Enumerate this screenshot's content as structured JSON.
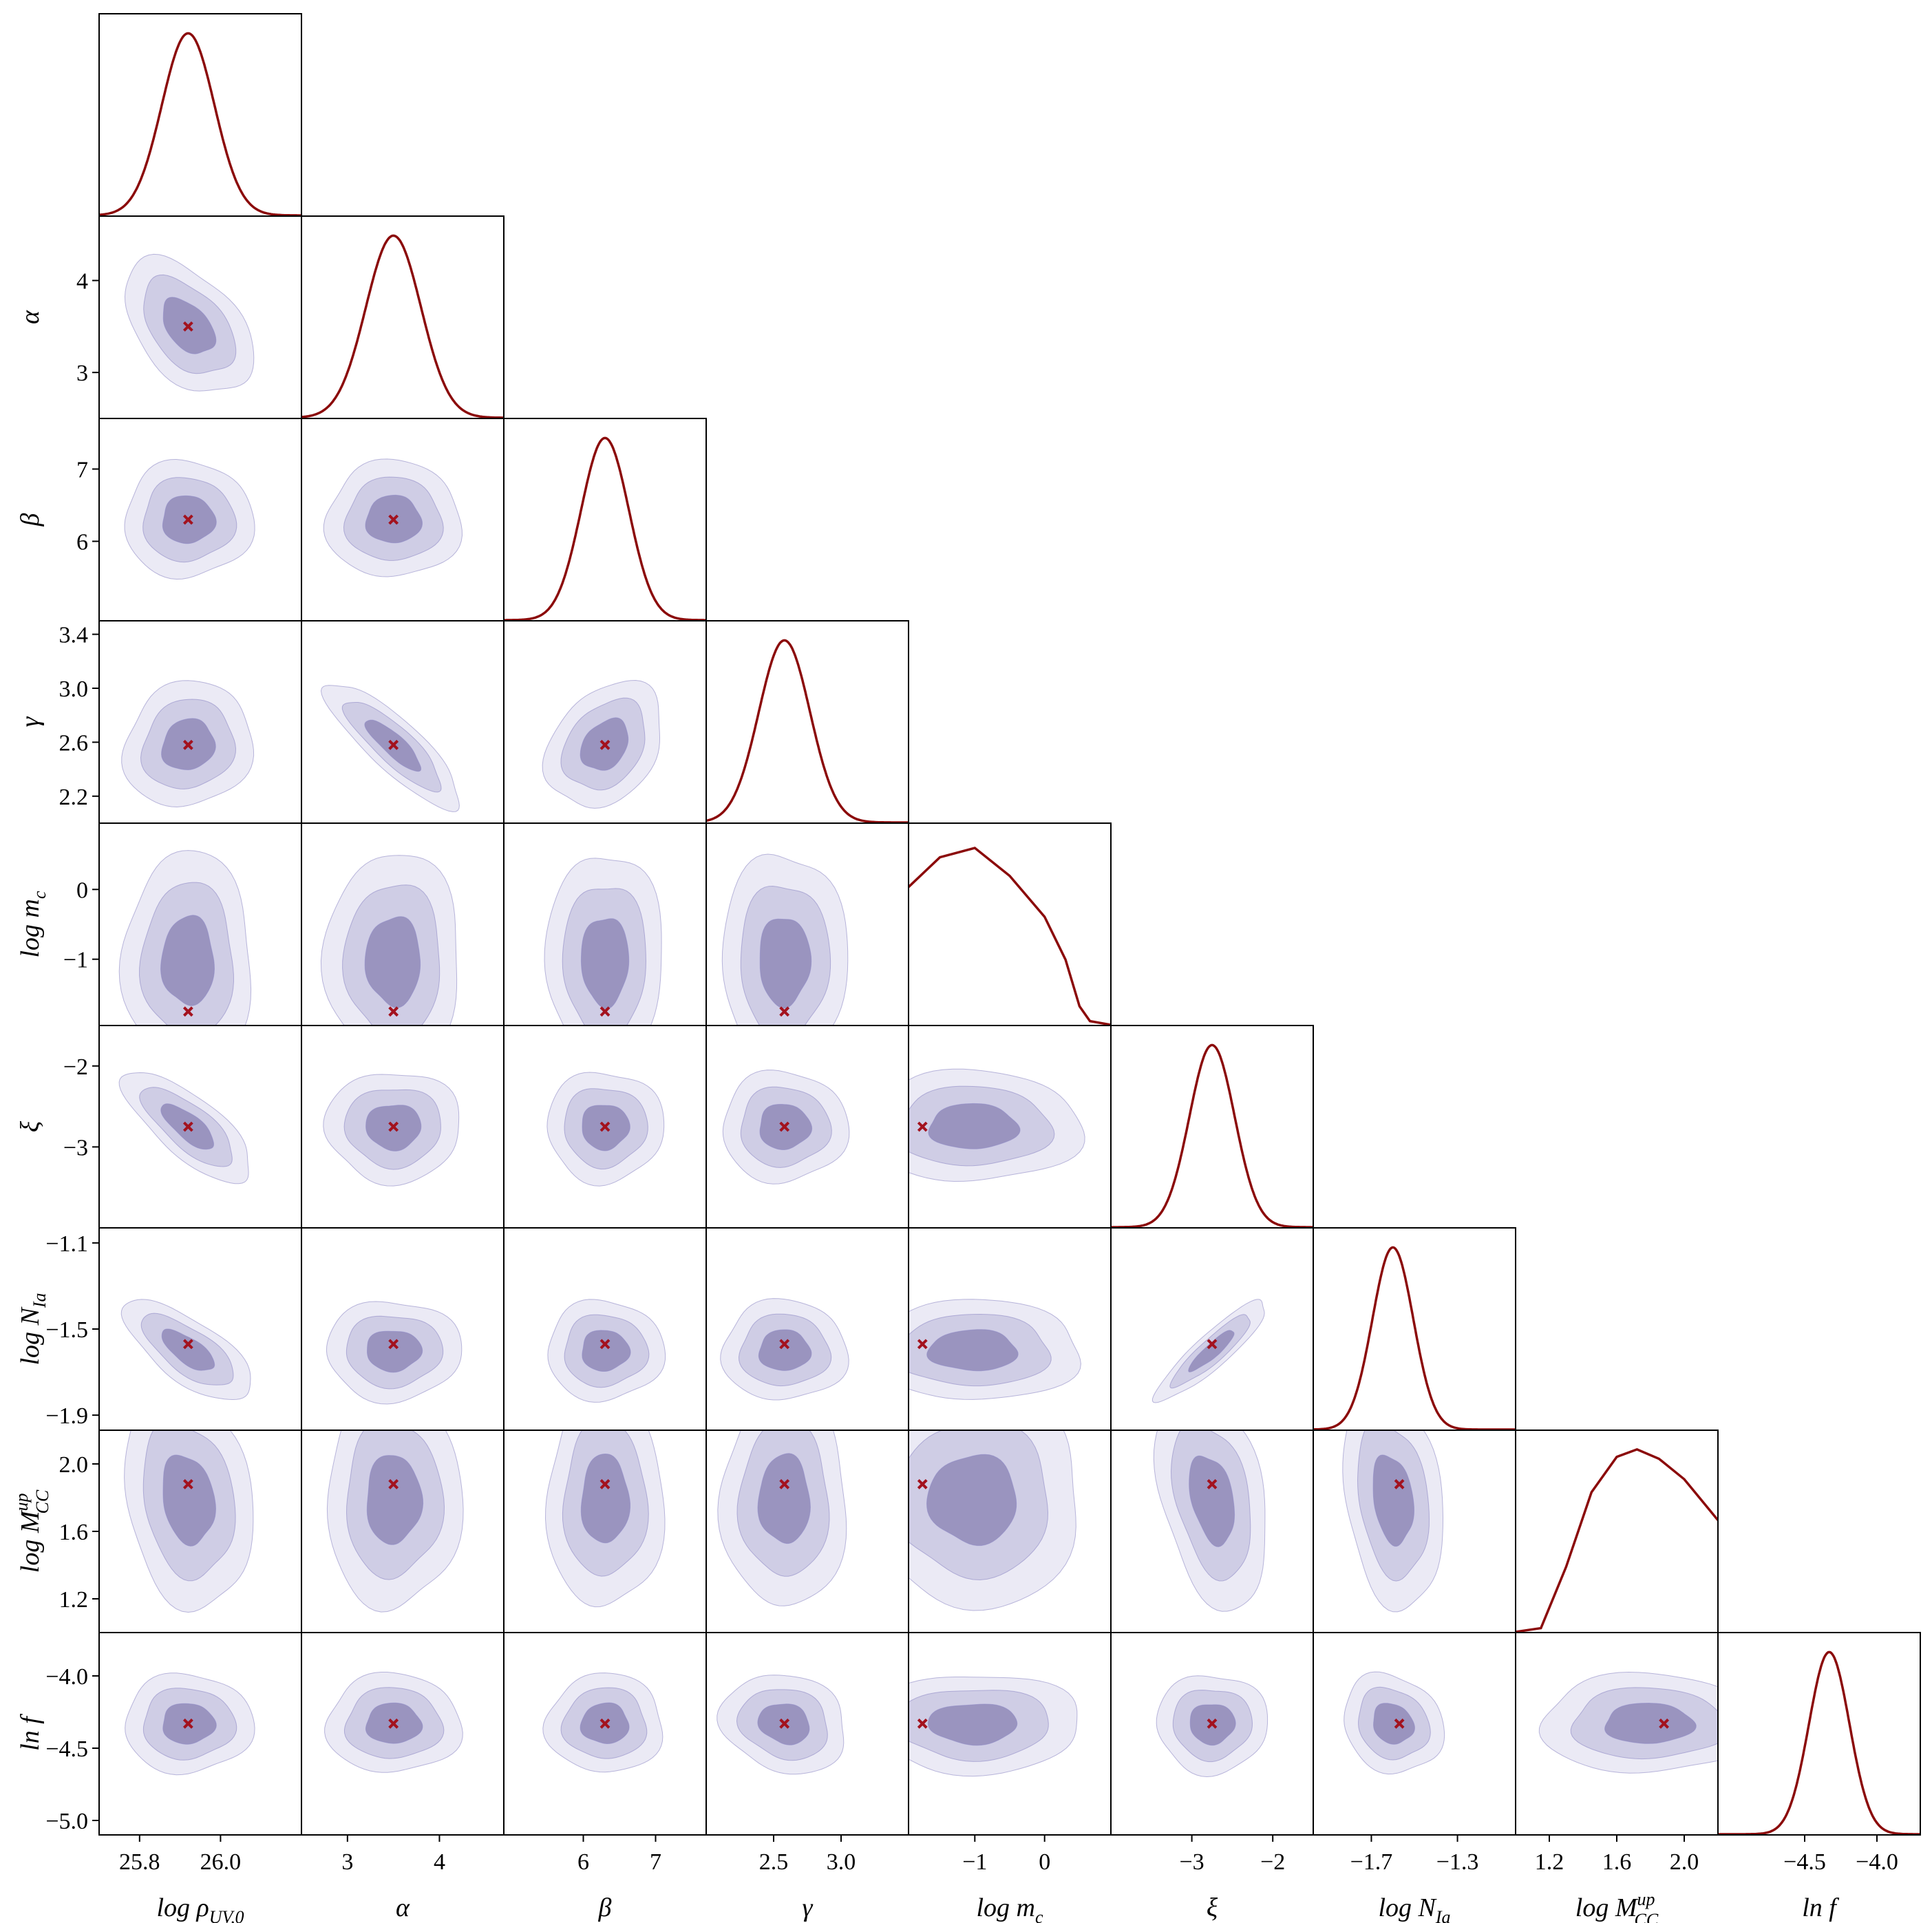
{
  "chart_data": {
    "type": "corner",
    "parameters": [
      {
        "key": "log_rho_uv0",
        "label": "log ρ",
        "sub": "UV,0",
        "sup": "",
        "italic": true,
        "range": [
          25.7,
          26.2
        ],
        "ticks": [
          25.8,
          26.0
        ],
        "tick_labels": [
          "25.8",
          "26.0"
        ],
        "best_fit": 25.92,
        "marginal": {
          "type": "gaussian",
          "mu": 25.92,
          "sigma": 0.065
        }
      },
      {
        "key": "alpha",
        "label": "α",
        "sub": "",
        "sup": "",
        "italic": true,
        "range": [
          2.5,
          4.7
        ],
        "ticks": [
          3,
          4
        ],
        "tick_labels": [
          "3",
          "4"
        ],
        "best_fit": 3.5,
        "marginal": {
          "type": "gaussian",
          "mu": 3.5,
          "sigma": 0.3
        }
      },
      {
        "key": "beta",
        "label": "β",
        "sub": "",
        "sup": "",
        "italic": true,
        "range": [
          4.9,
          7.7
        ],
        "ticks": [
          6,
          7
        ],
        "tick_labels": [
          "6",
          "7"
        ],
        "best_fit": 6.3,
        "marginal": {
          "type": "gaussian",
          "mu": 6.3,
          "sigma": 0.33
        }
      },
      {
        "key": "gamma",
        "label": "γ",
        "sub": "",
        "sup": "",
        "italic": true,
        "range": [
          2.0,
          3.5
        ],
        "ticks": [
          2.2,
          2.6,
          3.0,
          3.4
        ],
        "tick_labels": [
          "2.2",
          "2.6",
          "3.0",
          "3.4"
        ],
        "x_ticks": [
          2.5,
          3.0
        ],
        "x_tick_labels": [
          "2.5",
          "3.0"
        ],
        "best_fit": 2.58,
        "marginal": {
          "type": "gaussian",
          "mu": 2.58,
          "sigma": 0.19
        }
      },
      {
        "key": "log_mc",
        "label": "log m",
        "sub": "c",
        "sup": "",
        "italic": true,
        "range": [
          -1.95,
          0.95
        ],
        "ticks": [
          -1,
          0
        ],
        "tick_labels": [
          "−1",
          "0"
        ],
        "best_fit": -1.75,
        "marginal": {
          "type": "plateau",
          "points": [
            [
              -1.95,
              0.74
            ],
            [
              -1.5,
              0.9
            ],
            [
              -1.0,
              0.95
            ],
            [
              -0.5,
              0.8
            ],
            [
              0.0,
              0.58
            ],
            [
              0.3,
              0.35
            ],
            [
              0.5,
              0.1
            ],
            [
              0.65,
              0.02
            ],
            [
              0.95,
              0.0
            ]
          ]
        }
      },
      {
        "key": "xi",
        "label": "ξ",
        "sub": "",
        "sup": "",
        "italic": true,
        "range": [
          -4.0,
          -1.5
        ],
        "ticks": [
          -3,
          -2
        ],
        "tick_labels": [
          "−3",
          "−2"
        ],
        "y_ticks": [
          -3,
          -2
        ],
        "best_fit": -2.75,
        "marginal": {
          "type": "gaussian",
          "mu": -2.75,
          "sigma": 0.28
        }
      },
      {
        "key": "log_nia",
        "label": "log N",
        "sub": "Ia",
        "sup": "",
        "italic": true,
        "range": [
          -1.97,
          -1.03
        ],
        "ticks": [
          -1.7,
          -1.3
        ],
        "tick_labels": [
          "−1.7",
          "−1.3"
        ],
        "y_ticks": [
          -1.9,
          -1.5,
          -1.1
        ],
        "y_tick_labels": [
          "−1.9",
          "−1.5",
          "−1.1"
        ],
        "best_fit": -1.57,
        "marginal": {
          "type": "gaussian",
          "mu": -1.6,
          "sigma": 0.095
        }
      },
      {
        "key": "log_mcc_up",
        "label": "log M",
        "sub": "CC",
        "sup": "up",
        "italic": true,
        "range": [
          1.0,
          2.2
        ],
        "ticks": [
          1.2,
          1.6,
          2.0
        ],
        "tick_labels": [
          "1.2",
          "1.6",
          "2.0"
        ],
        "best_fit": 1.88,
        "marginal": {
          "type": "plateau",
          "points": [
            [
              1.0,
              0.0
            ],
            [
              1.15,
              0.02
            ],
            [
              1.3,
              0.35
            ],
            [
              1.45,
              0.75
            ],
            [
              1.6,
              0.94
            ],
            [
              1.72,
              0.98
            ],
            [
              1.85,
              0.93
            ],
            [
              2.0,
              0.82
            ],
            [
              2.2,
              0.6
            ]
          ]
        }
      },
      {
        "key": "lnf",
        "label": "ln f",
        "sub": "",
        "sup": "",
        "italic": true,
        "range": [
          -5.1,
          -3.7
        ],
        "ticks": [
          -5.0,
          -4.5,
          -4.0
        ],
        "tick_labels": [
          "−5.0",
          "−4.5",
          "−4.0"
        ],
        "x_ticks": [
          -4.5,
          -4.0
        ],
        "x_tick_labels": [
          "−4.5",
          "−4.0"
        ],
        "best_fit": -4.33,
        "marginal": {
          "type": "gaussian",
          "mu": -4.33,
          "sigma": 0.14
        }
      }
    ],
    "correlations": {
      "alpha|log_rho_uv0": -0.45,
      "gamma|alpha": -0.85,
      "gamma|beta": 0.3,
      "xi|log_rho_uv0": -0.75,
      "log_nia|log_rho_uv0": -0.7,
      "log_nia|xi": 0.9,
      "gamma|log_rho_uv0": 0.1,
      "log_mcc_up|log_rho_uv0": -0.2,
      "log_mcc_up|xi": -0.35,
      "log_mcc_up|log_nia": -0.25,
      "lnf|gamma": -0.15,
      "lnf|log_nia": -0.15
    },
    "contour_levels": [
      "1σ",
      "2σ",
      "3σ"
    ],
    "colors": {
      "contour_1sigma": "#9a94bf",
      "contour_2sigma": "#cfcde5",
      "contour_3sigma": "#ebeaf5",
      "contour_edge": "#8e88c4",
      "marginal_line": "#8b0a0a",
      "best_fit_marker": "#a3121e",
      "frame": "#000000"
    }
  }
}
